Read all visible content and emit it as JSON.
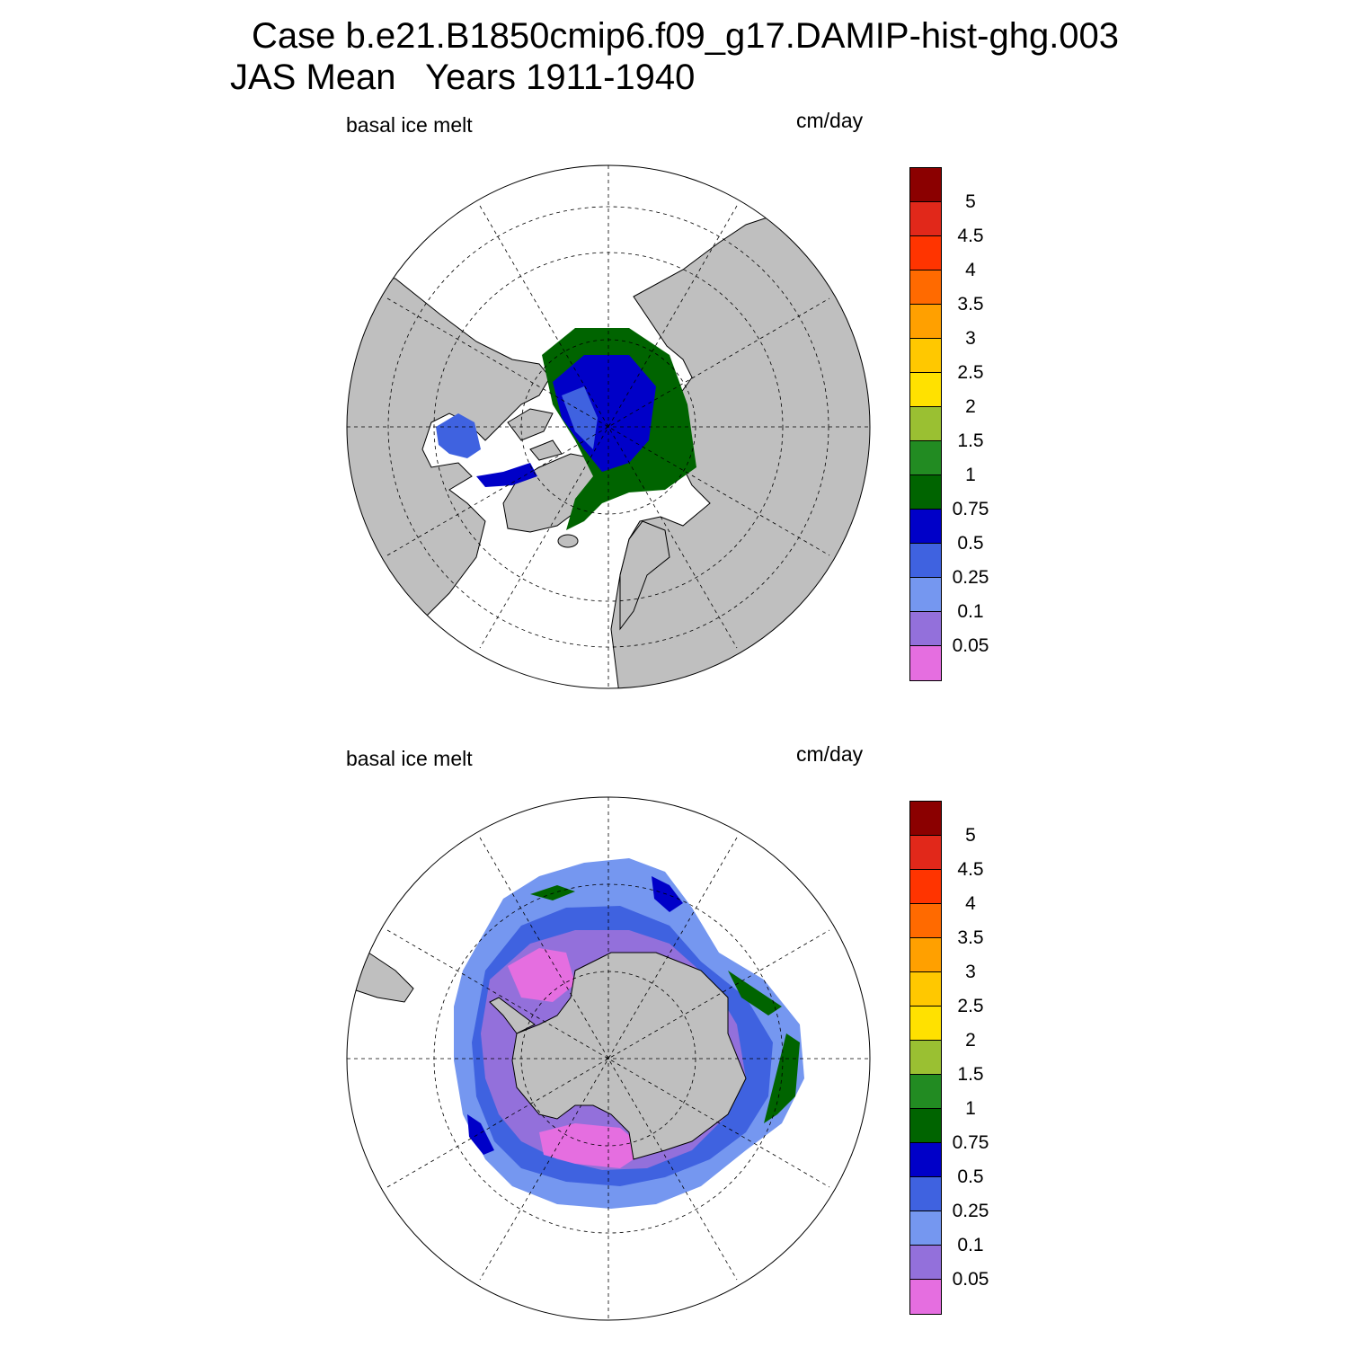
{
  "title_line1": "Case b.e21.B1850cmip6.f09_g17.DAMIP-hist-ghg.003",
  "title_line2": "JAS Mean   Years 1911-1940",
  "colors": {
    "land": "#bfbfbf",
    "bins": [
      "#e56ee0",
      "#9370db",
      "#7597f0",
      "#3f62e0",
      "#0000c8",
      "#006400",
      "#228b22",
      "#9ac032",
      "#ffe100",
      "#ffc800",
      "#ffa000",
      "#ff6a00",
      "#ff3400",
      "#e1281a",
      "#8b0000"
    ]
  },
  "panels": [
    {
      "id": "north",
      "variable": "basal ice melt",
      "units": "cm/day",
      "legend": {
        "labels": [
          "0.05",
          "0.1",
          "0.25",
          "0.5",
          "0.75",
          "1",
          "1.5",
          "2",
          "2.5",
          "3",
          "3.5",
          "4",
          "4.5",
          "5"
        ]
      }
    },
    {
      "id": "south",
      "variable": "basal ice melt",
      "units": "cm/day",
      "legend": {
        "labels": [
          "0.05",
          "0.1",
          "0.25",
          "0.5",
          "0.75",
          "1",
          "1.5",
          "2",
          "2.5",
          "3",
          "3.5",
          "4",
          "4.5",
          "5"
        ]
      }
    }
  ]
}
